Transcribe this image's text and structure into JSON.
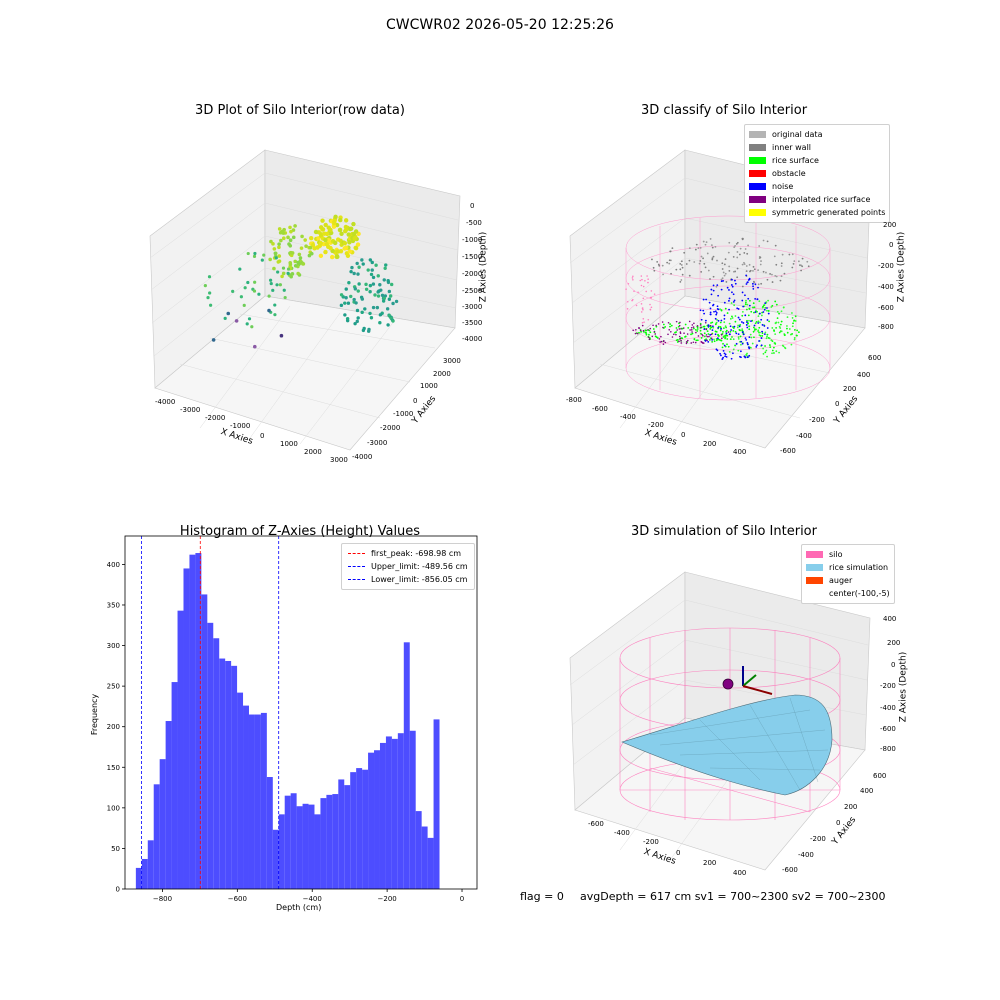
{
  "figure": {
    "suptitle": "CWCWR02 2026-05-20 12:25:26"
  },
  "panels": {
    "raw": {
      "title": "3D Plot of Silo Interior(row data)",
      "xlabel": "X Axies",
      "ylabel": "Y Axies",
      "zlabel": "Z Axies (Depth)",
      "xticks": [
        "-4000",
        "-3000",
        "-2000",
        "-1000",
        "0",
        "1000",
        "2000",
        "3000"
      ],
      "yticks": [
        "3000",
        "2000",
        "1000",
        "0",
        "-1000",
        "-2000",
        "-3000",
        "-4000"
      ],
      "zticks": [
        "0",
        "-500",
        "-1000",
        "-1500",
        "-2000",
        "-2500",
        "-3000",
        "-3500",
        "-4000"
      ]
    },
    "classify": {
      "title": "3D classify of Silo Interior",
      "xlabel": "X Axies",
      "ylabel": "Y Axies",
      "zlabel": "Z Axies (Depth)",
      "xticks": [
        "-800",
        "-600",
        "-400",
        "-200",
        "0",
        "200",
        "400"
      ],
      "yticks": [
        "600",
        "400",
        "200",
        "0",
        "-200",
        "-400",
        "-600"
      ],
      "zticks": [
        "200",
        "0",
        "-200",
        "-400",
        "-600",
        "-800"
      ],
      "legend": [
        {
          "label": "original data",
          "color": "#b4b4b4"
        },
        {
          "label": "inner wall",
          "color": "#808080"
        },
        {
          "label": "rice surface",
          "color": "#00ff00"
        },
        {
          "label": "obstacle",
          "color": "#ff0000"
        },
        {
          "label": "noise",
          "color": "#0000ff"
        },
        {
          "label": "interpolated rice surface",
          "color": "#800080"
        },
        {
          "label": "symmetric generated points",
          "color": "#ffff00"
        }
      ]
    },
    "simulation": {
      "title": "3D simulation of Silo Interior",
      "xlabel": "X Axies",
      "ylabel": "Y Axies",
      "zlabel": "Z Axies (Depth)",
      "xticks": [
        "-600",
        "-400",
        "-200",
        "0",
        "200",
        "400"
      ],
      "yticks": [
        "600",
        "400",
        "200",
        "0",
        "-200",
        "-400",
        "-600"
      ],
      "zticks": [
        "400",
        "200",
        "0",
        "-200",
        "-400",
        "-600",
        "-800"
      ],
      "legend": [
        {
          "label": "silo",
          "color": "#ff69b4"
        },
        {
          "label": "rice simulation",
          "color": "#87ceeb"
        },
        {
          "label": "auger",
          "color": "#ff4500"
        },
        {
          "label": "center(-100,-5)",
          "color": ""
        }
      ]
    }
  },
  "footer": {
    "flag": "flag = 0",
    "stats": "avgDepth = 617 cm  sv1 = 700~2300  sv2 = 700~2300"
  },
  "chart_data": {
    "type": "bar",
    "title": "Histogram of Z-Axies (Height) Values",
    "xlabel": "Depth (cm)",
    "ylabel": "Frequency",
    "xlim": [
      -900,
      40
    ],
    "ylim": [
      0,
      435
    ],
    "xticks": [
      -800,
      -600,
      -400,
      -200,
      0
    ],
    "yticks": [
      0,
      50,
      100,
      150,
      200,
      250,
      300,
      350,
      400
    ],
    "bar_color": "#4d4dff",
    "bin_width": 15.9,
    "bin_start": -871,
    "values": [
      26,
      37,
      60,
      129,
      160,
      207,
      255,
      343,
      395,
      412,
      414,
      363,
      328,
      309,
      284,
      281,
      275,
      242,
      226,
      215,
      215,
      217,
      138,
      73,
      92,
      115,
      118,
      102,
      105,
      104,
      92,
      112,
      116,
      117,
      135,
      128,
      144,
      149,
      147,
      168,
      171,
      180,
      188,
      185,
      192,
      304,
      195,
      96,
      77,
      63,
      209
    ],
    "vlines": [
      {
        "label": "first_peak: -698.98 cm",
        "x": -698.98,
        "color": "#ff0000"
      },
      {
        "label": "Upper_limit: -489.56 cm",
        "x": -489.56,
        "color": "#0000ff"
      },
      {
        "label": "Lower_limit: -856.05 cm",
        "x": -856.05,
        "color": "#0000ff"
      }
    ],
    "legend_position": "upper right"
  }
}
